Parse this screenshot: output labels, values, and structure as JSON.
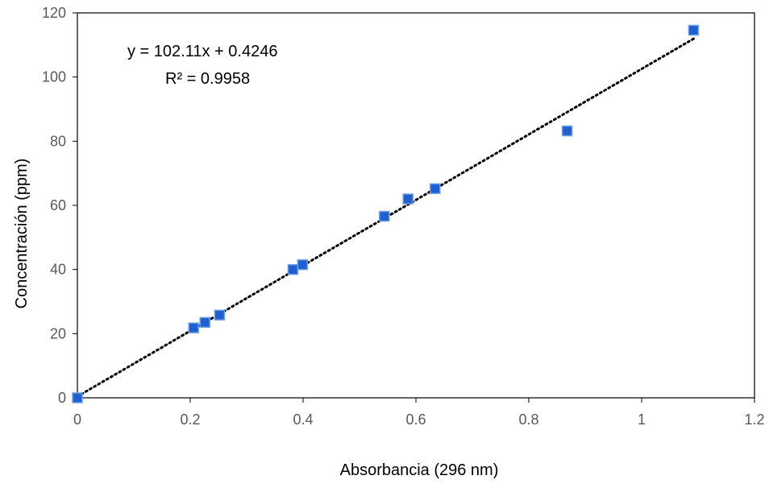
{
  "chart_data": {
    "type": "scatter",
    "title": "",
    "xlabel": "Absorbancia (296 nm)",
    "ylabel": "Concentración (ppm)",
    "xlim": [
      0,
      1.2
    ],
    "ylim": [
      0,
      120
    ],
    "x_ticks": [
      0,
      0.2,
      0.4,
      0.6,
      0.8,
      1,
      1.2
    ],
    "y_ticks": [
      0,
      20,
      40,
      60,
      80,
      100,
      120
    ],
    "x_tick_labels": [
      "0",
      "0.2",
      "0.4",
      "0.6",
      "0.8",
      "1",
      "1.2"
    ],
    "y_tick_labels": [
      "0",
      "20",
      "40",
      "60",
      "80",
      "100",
      "120"
    ],
    "grid": false,
    "legend": "none",
    "marker": "square",
    "marker_color": "#1f5fd1",
    "marker_edge_color": "#6fa0e0",
    "series": [
      {
        "x": [
          0.0,
          0.206,
          0.226,
          0.252,
          0.382,
          0.399,
          0.544,
          0.586,
          0.634,
          0.868,
          1.092
        ],
        "y": [
          0.0,
          21.8,
          23.5,
          25.8,
          40.0,
          41.5,
          56.6,
          62.0,
          65.2,
          83.2,
          114.6
        ]
      }
    ],
    "trendline": {
      "type": "linear",
      "slope": 102.11,
      "intercept": 0.4246,
      "x_range": [
        0,
        1.092
      ],
      "style": "dotted",
      "color": "#000000"
    },
    "annotations": [
      {
        "text": "y = 102.11x + 0.4246"
      },
      {
        "text": "R² = 0.9958"
      }
    ]
  }
}
